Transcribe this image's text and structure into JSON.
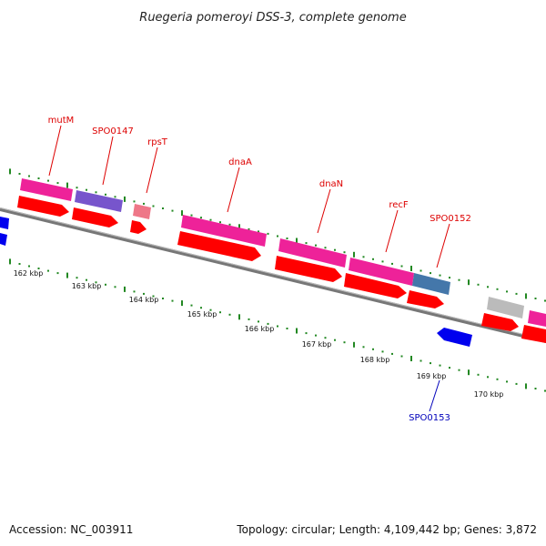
{
  "title": "Ruegeria pomeroyi DSS-3, complete genome",
  "footer": {
    "accession": "Accession: NC_003911",
    "topology": "Topology: circular; Length: 4,109,442 bp; Genes: 3,872"
  },
  "colors": {
    "backbone": "#888888",
    "cds": "#ff0000",
    "gene_magenta": "#ee2299",
    "gene_purple": "#7755cc",
    "gene_pink": "#ee7788",
    "gene_steel": "#4477aa",
    "gene_gray": "#bbbbbb",
    "reverse_cds": "#0000ee",
    "tick": "#228822",
    "label_forward": "#dd0000",
    "label_reverse": "#0000bb"
  },
  "scale_ticks": [
    "162 kbp",
    "163 kbp",
    "164 kbp",
    "165 kbp",
    "166 kbp",
    "167 kbp",
    "168 kbp",
    "169 kbp",
    "170 kbp"
  ],
  "gene_labels": [
    {
      "name": "mutM",
      "strand": "forward"
    },
    {
      "name": "SPO0147",
      "strand": "forward"
    },
    {
      "name": "rpsT",
      "strand": "forward"
    },
    {
      "name": "dnaA",
      "strand": "forward"
    },
    {
      "name": "dnaN",
      "strand": "forward"
    },
    {
      "name": "recF",
      "strand": "forward"
    },
    {
      "name": "SPO0152",
      "strand": "forward"
    },
    {
      "name": "SPO0153",
      "strand": "reverse"
    }
  ]
}
